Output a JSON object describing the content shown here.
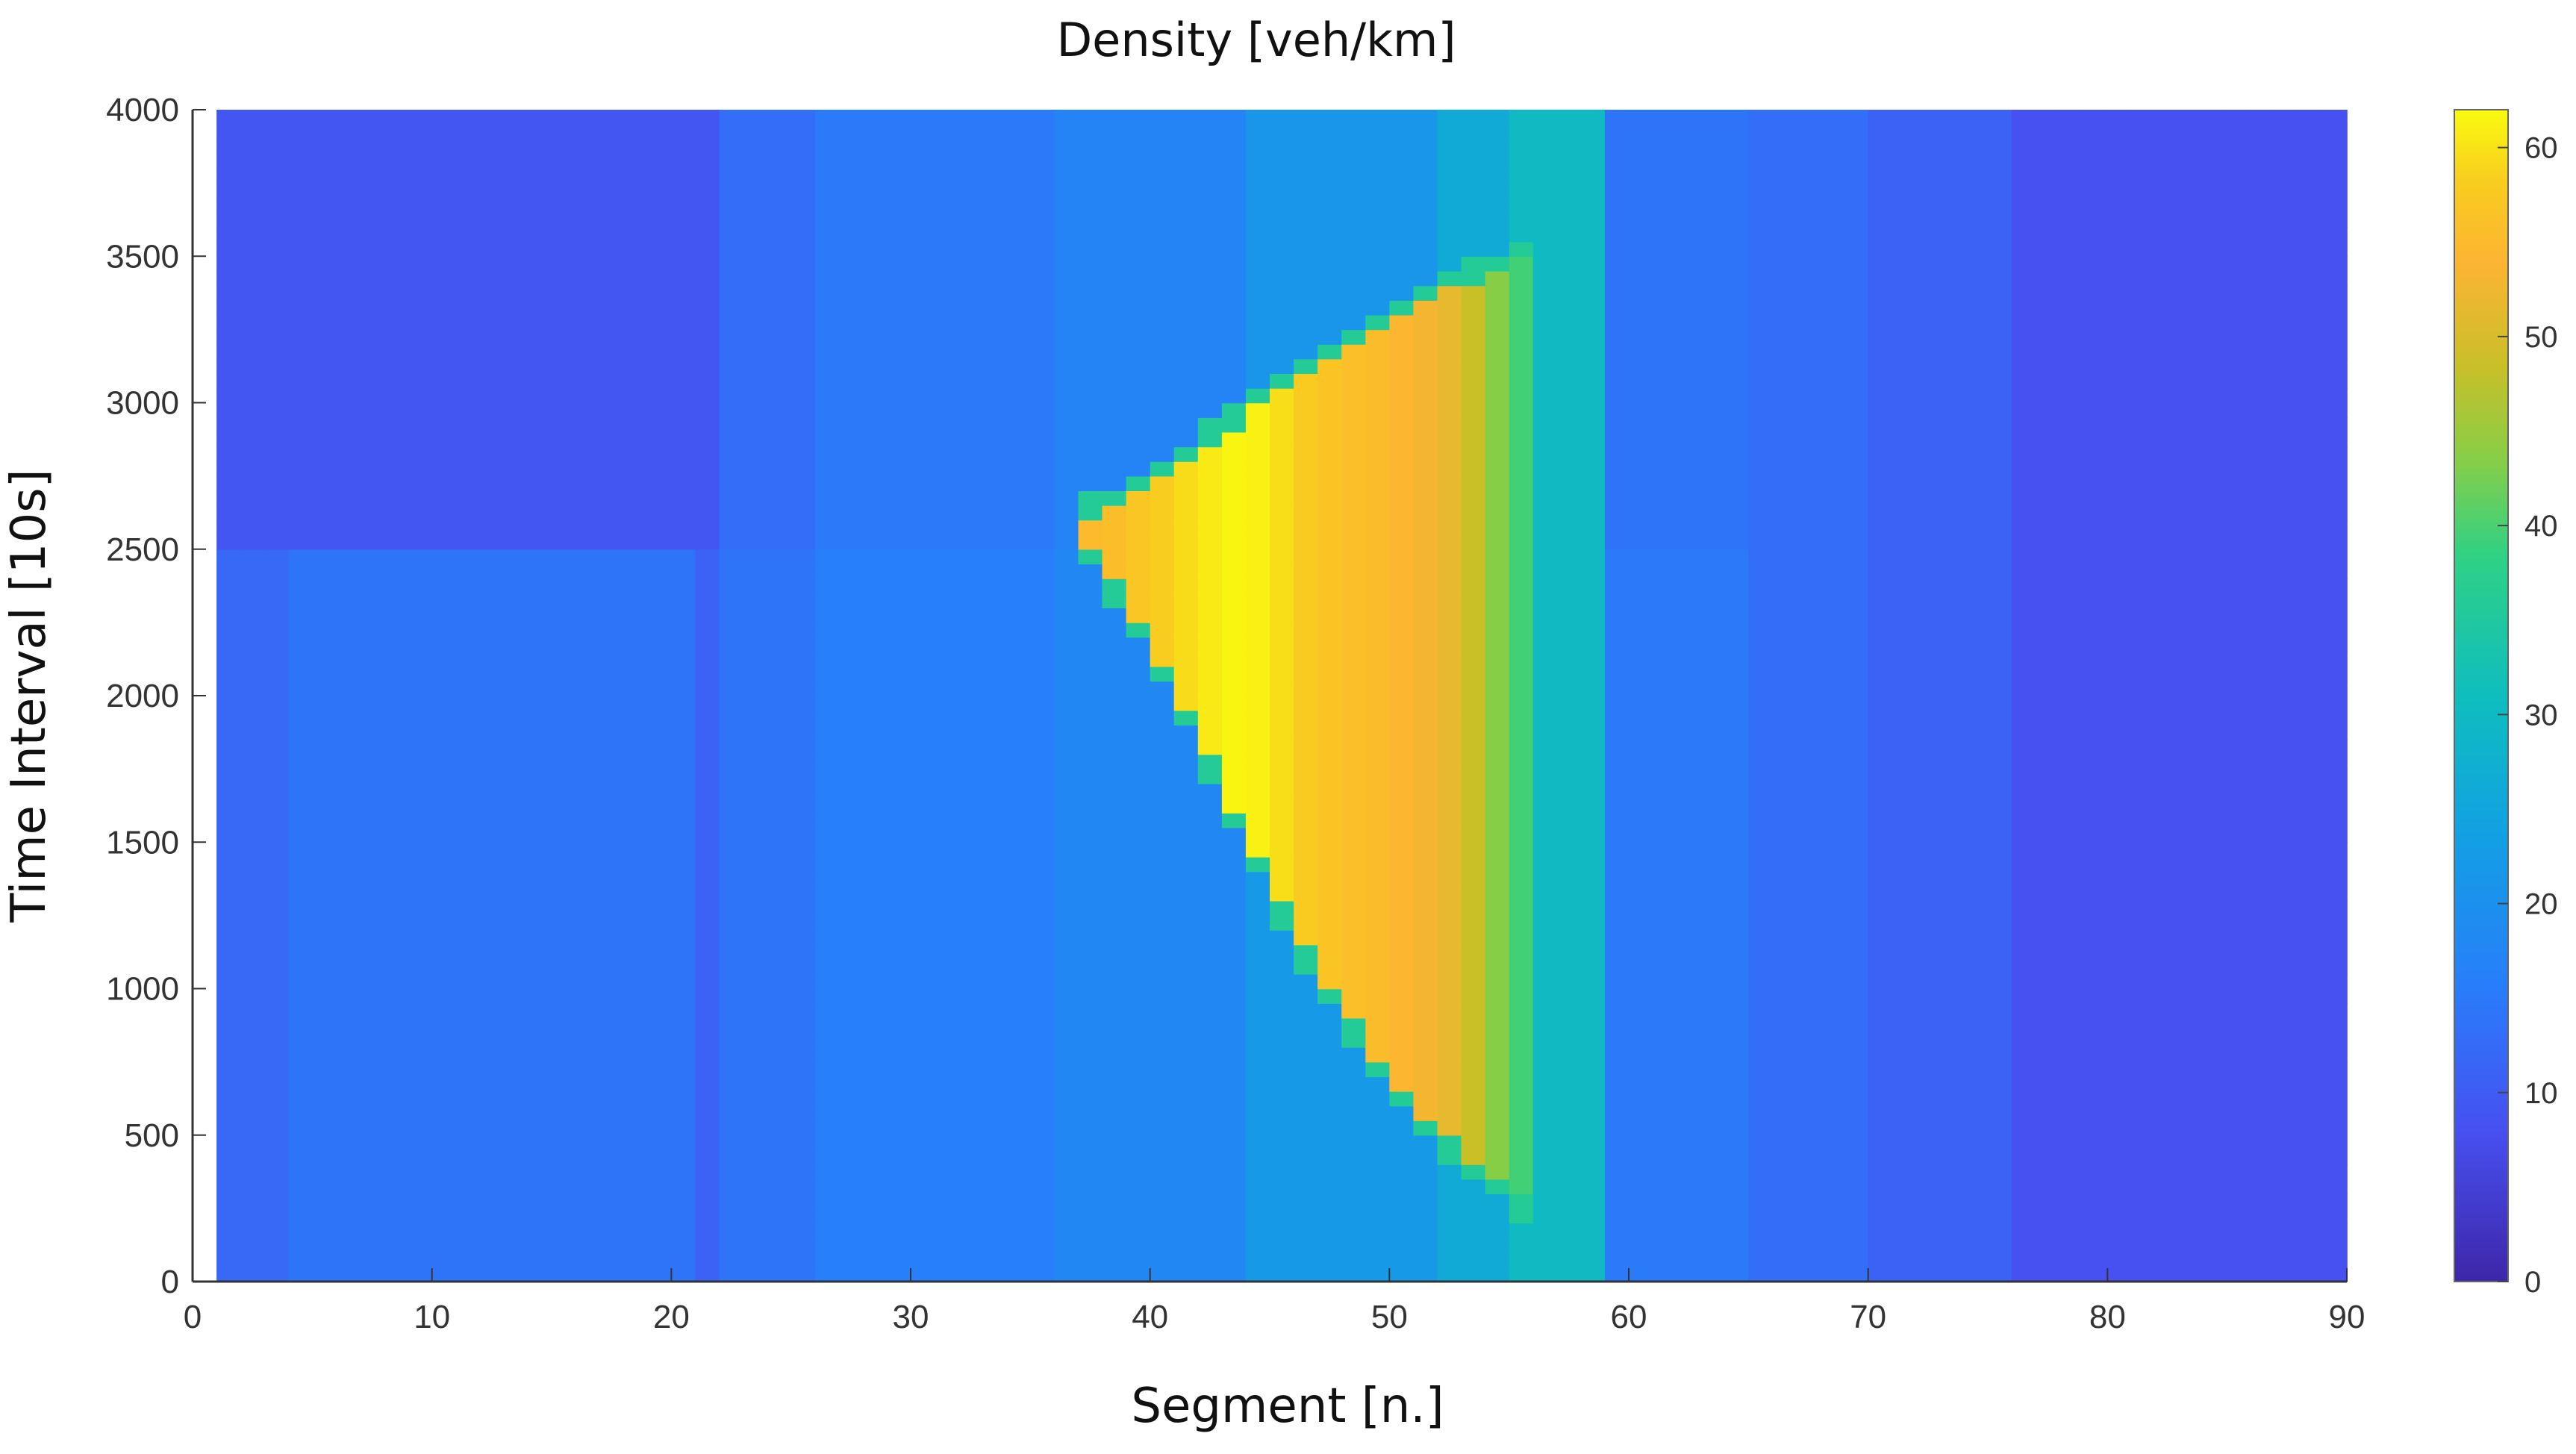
{
  "chart_data": {
    "type": "heatmap",
    "title": "Density [veh/km]",
    "xlabel": "Segment [n.]",
    "ylabel": "Time Interval [10s]",
    "xlim": [
      0,
      90
    ],
    "ylim": [
      0,
      4000
    ],
    "xticks": [
      0,
      10,
      20,
      30,
      40,
      50,
      60,
      70,
      80,
      90
    ],
    "yticks": [
      0,
      500,
      1000,
      1500,
      2000,
      2500,
      3000,
      3500,
      4000
    ],
    "colorbar": {
      "min": 0,
      "max": 62,
      "ticks": [
        0,
        10,
        20,
        30,
        40,
        50,
        60
      ],
      "colormap": "parula"
    },
    "data_extent": {
      "x": [
        1,
        90
      ],
      "y": [
        0,
        4000
      ]
    },
    "background_density": [
      {
        "from_segment": 1,
        "to_segment": 4,
        "density_low_time": 12,
        "density_high_time": 9
      },
      {
        "from_segment": 4,
        "to_segment": 21,
        "density_low_time": 14,
        "density_high_time": 9
      },
      {
        "from_segment": 21,
        "to_segment": 22,
        "density_low_time": 11,
        "density_high_time": 9
      },
      {
        "from_segment": 22,
        "to_segment": 26,
        "density_low_time": 14,
        "density_high_time": 13
      },
      {
        "from_segment": 26,
        "to_segment": 36,
        "density_low_time": 16,
        "density_high_time": 15
      },
      {
        "from_segment": 36,
        "to_segment": 44,
        "density_low_time": 18,
        "density_high_time": 17
      },
      {
        "from_segment": 44,
        "to_segment": 52,
        "density_low_time": 22,
        "density_high_time": 21
      },
      {
        "from_segment": 52,
        "to_segment": 55,
        "density_low_time": 26,
        "density_high_time": 26
      },
      {
        "from_segment": 55,
        "to_segment": 59,
        "density_low_time": 30,
        "density_high_time": 30
      },
      {
        "from_segment": 59,
        "to_segment": 65,
        "density_low_time": 15,
        "density_high_time": 14
      },
      {
        "from_segment": 65,
        "to_segment": 70,
        "density_low_time": 13,
        "density_high_time": 13
      },
      {
        "from_segment": 70,
        "to_segment": 76,
        "density_low_time": 11,
        "density_high_time": 11
      },
      {
        "from_segment": 76,
        "to_segment": 90,
        "density_low_time": 8,
        "density_high_time": 8
      }
    ],
    "background_time_split": 2520,
    "congestion_region": {
      "apex": {
        "segment": 37,
        "time": 2580
      },
      "right_edge_segment": 56,
      "upper_boundary": [
        [
          37,
          2600
        ],
        [
          40,
          2700
        ],
        [
          44,
          2950
        ],
        [
          48,
          3150
        ],
        [
          53,
          3400
        ],
        [
          56,
          3500
        ]
      ],
      "lower_boundary": [
        [
          37,
          2580
        ],
        [
          40,
          2200
        ],
        [
          43,
          1700
        ],
        [
          46,
          1200
        ],
        [
          50,
          700
        ],
        [
          53,
          450
        ],
        [
          56,
          250
        ]
      ],
      "column_density": [
        {
          "segment": 38,
          "density": 55
        },
        {
          "segment": 42,
          "density": 60
        },
        {
          "segment": 44,
          "density": 62
        },
        {
          "segment": 47,
          "density": 57
        },
        {
          "segment": 50,
          "density": 55
        },
        {
          "segment": 53,
          "density": 51
        },
        {
          "segment": 54,
          "density": 46
        },
        {
          "segment": 55,
          "density": 41
        },
        {
          "segment": 56,
          "density": 38
        }
      ]
    }
  }
}
